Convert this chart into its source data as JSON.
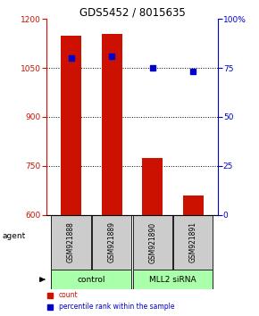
{
  "title": "GDS5452 / 8015635",
  "samples": [
    "GSM921888",
    "GSM921889",
    "GSM921890",
    "GSM921891"
  ],
  "counts": [
    1150,
    1155,
    775,
    660
  ],
  "percentiles": [
    80,
    81,
    75,
    73
  ],
  "ylim_left": [
    600,
    1200
  ],
  "ylim_right": [
    0,
    100
  ],
  "yticks_left": [
    600,
    750,
    900,
    1050,
    1200
  ],
  "yticks_right": [
    0,
    25,
    50,
    75,
    100
  ],
  "group_info": [
    {
      "label": "control",
      "start": 0,
      "end": 1,
      "color": "#aaffaa"
    },
    {
      "label": "MLL2 siRNA",
      "start": 2,
      "end": 3,
      "color": "#aaffaa"
    }
  ],
  "bar_color": "#cc1100",
  "dot_color": "#0000cc",
  "bar_width": 0.5,
  "background_color": "#ffffff",
  "sample_box_color": "#cccccc",
  "agent_label": "agent",
  "legend_items": [
    {
      "label": "count",
      "color": "#cc1100"
    },
    {
      "label": "percentile rank within the sample",
      "color": "#0000cc"
    }
  ],
  "left_axis_color": "#cc1100",
  "right_axis_color": "#0000cc"
}
